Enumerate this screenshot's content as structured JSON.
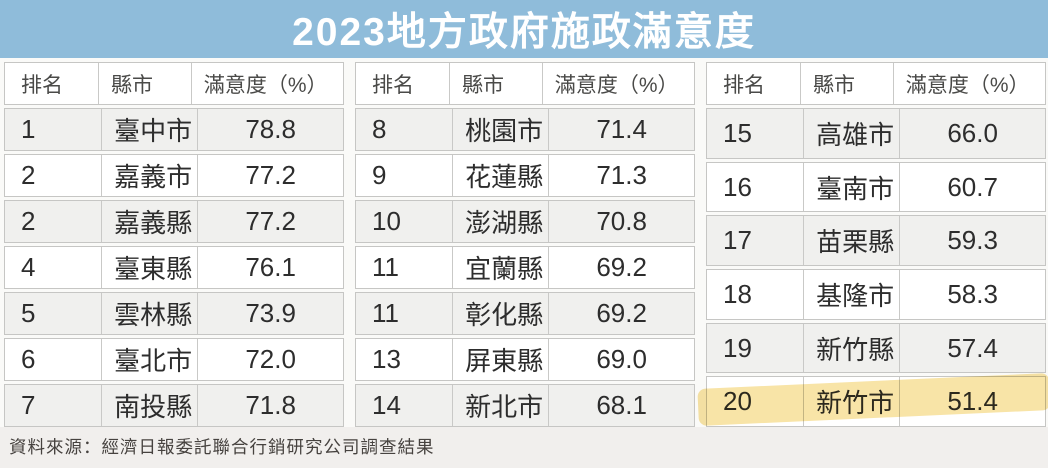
{
  "title": "2023地方政府施政滿意度",
  "source": "資料來源：經濟日報委託聯合行銷研究公司調查結果",
  "columns": [
    "排名",
    "縣市",
    "滿意度（%）"
  ],
  "tables": [
    {
      "rows": [
        [
          "1",
          "臺中市",
          "78.8"
        ],
        [
          "2",
          "嘉義市",
          "77.2"
        ],
        [
          "2",
          "嘉義縣",
          "77.2"
        ],
        [
          "4",
          "臺東縣",
          "76.1"
        ],
        [
          "5",
          "雲林縣",
          "73.9"
        ],
        [
          "6",
          "臺北市",
          "72.0"
        ],
        [
          "7",
          "南投縣",
          "71.8"
        ]
      ]
    },
    {
      "rows": [
        [
          "8",
          "桃園市",
          "71.4"
        ],
        [
          "9",
          "花蓮縣",
          "71.3"
        ],
        [
          "10",
          "澎湖縣",
          "70.8"
        ],
        [
          "11",
          "宜蘭縣",
          "69.2"
        ],
        [
          "11",
          "彰化縣",
          "69.2"
        ],
        [
          "13",
          "屏東縣",
          "69.0"
        ],
        [
          "14",
          "新北市",
          "68.1"
        ]
      ]
    },
    {
      "rows": [
        [
          "15",
          "高雄市",
          "66.0"
        ],
        [
          "16",
          "臺南市",
          "60.7"
        ],
        [
          "17",
          "苗栗縣",
          "59.3"
        ],
        [
          "18",
          "基隆市",
          "58.3"
        ],
        [
          "19",
          "新竹縣",
          "57.4"
        ],
        [
          "20",
          "新竹市",
          "51.4"
        ]
      ]
    }
  ],
  "highlight": {
    "rank": "20",
    "city": "新竹市",
    "score": "51.4",
    "color": "#f2cd5f"
  },
  "colors": {
    "title_bar": "#8fbcda",
    "title_text": "#ffffff",
    "row_alt": "#f0f0ee",
    "row_plain": "#ffffff",
    "border": "#c6c6c4",
    "highlight": "#f2cd5f",
    "source_bg": "#f1efed"
  },
  "chart_data": {
    "type": "table",
    "title": "2023地方政府施政滿意度",
    "columns": [
      "排名",
      "縣市",
      "滿意度（%）"
    ],
    "rows": [
      [
        1,
        "臺中市",
        78.8
      ],
      [
        2,
        "嘉義市",
        77.2
      ],
      [
        2,
        "嘉義縣",
        77.2
      ],
      [
        4,
        "臺東縣",
        76.1
      ],
      [
        5,
        "雲林縣",
        73.9
      ],
      [
        6,
        "臺北市",
        72.0
      ],
      [
        7,
        "南投縣",
        71.8
      ],
      [
        8,
        "桃園市",
        71.4
      ],
      [
        9,
        "花蓮縣",
        71.3
      ],
      [
        10,
        "澎湖縣",
        70.8
      ],
      [
        11,
        "宜蘭縣",
        69.2
      ],
      [
        11,
        "彰化縣",
        69.2
      ],
      [
        13,
        "屏東縣",
        69.0
      ],
      [
        14,
        "新北市",
        68.1
      ],
      [
        15,
        "高雄市",
        66.0
      ],
      [
        16,
        "臺南市",
        60.7
      ],
      [
        17,
        "苗栗縣",
        59.3
      ],
      [
        18,
        "基隆市",
        58.3
      ],
      [
        19,
        "新竹縣",
        57.4
      ],
      [
        20,
        "新竹市",
        51.4
      ]
    ],
    "highlighted_row": [
      20,
      "新竹市",
      51.4
    ],
    "layout": "three side-by-side tables of 7, 7 and 6 rows",
    "source": "資料來源：經濟日報委託聯合行銷研究公司調查結果"
  }
}
